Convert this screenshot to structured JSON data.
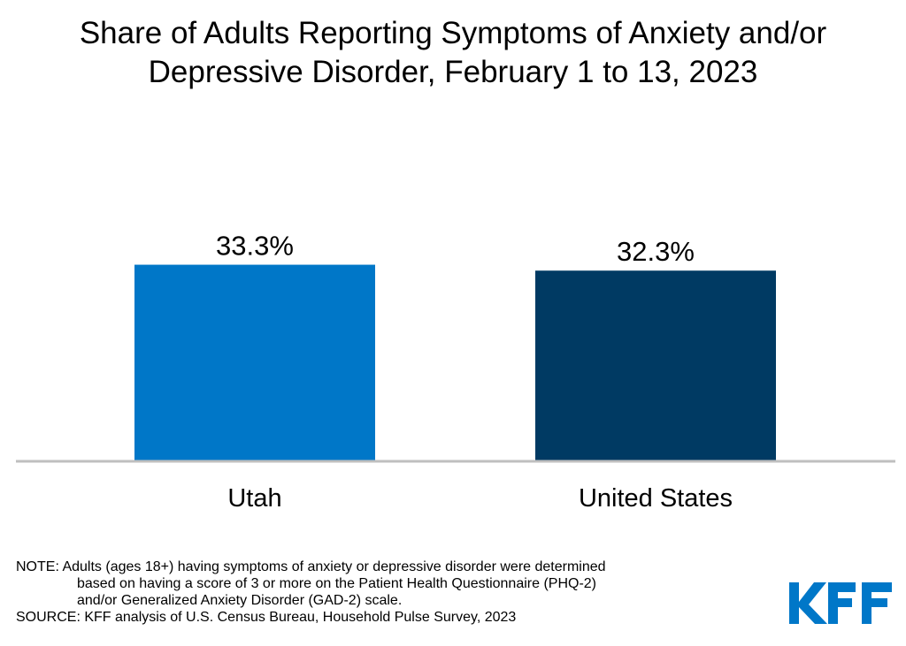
{
  "title_lines": [
    "Share of Adults Reporting Symptoms of Anxiety and/or",
    "Depressive Disorder, February 1 to 13, 2023"
  ],
  "chart_data": {
    "type": "bar",
    "title": "Share of Adults Reporting Symptoms of Anxiety and/or Depressive Disorder, February 1 to 13, 2023",
    "categories": [
      "Utah",
      "United States"
    ],
    "values": [
      33.3,
      32.3
    ],
    "value_labels": [
      "33.3%",
      "32.3%"
    ],
    "colors": [
      "#0077c8",
      "#003a63"
    ],
    "ylim": [
      0,
      50
    ],
    "grid": false,
    "legend": "none"
  },
  "note": {
    "lines": [
      "NOTE: Adults (ages 18+) having symptoms of anxiety or depressive disorder were determined",
      "based on having a score of 3 or more on the Patient Health Questionnaire (PHQ-2)",
      "and/or Generalized Anxiety Disorder (GAD-2) scale."
    ],
    "source": "SOURCE: KFF analysis of U.S. Census Bureau, Household Pulse Survey, 2023"
  },
  "logo": {
    "text": "KFF",
    "color": "#0077c8"
  },
  "axis_color": "#bfbfbf"
}
